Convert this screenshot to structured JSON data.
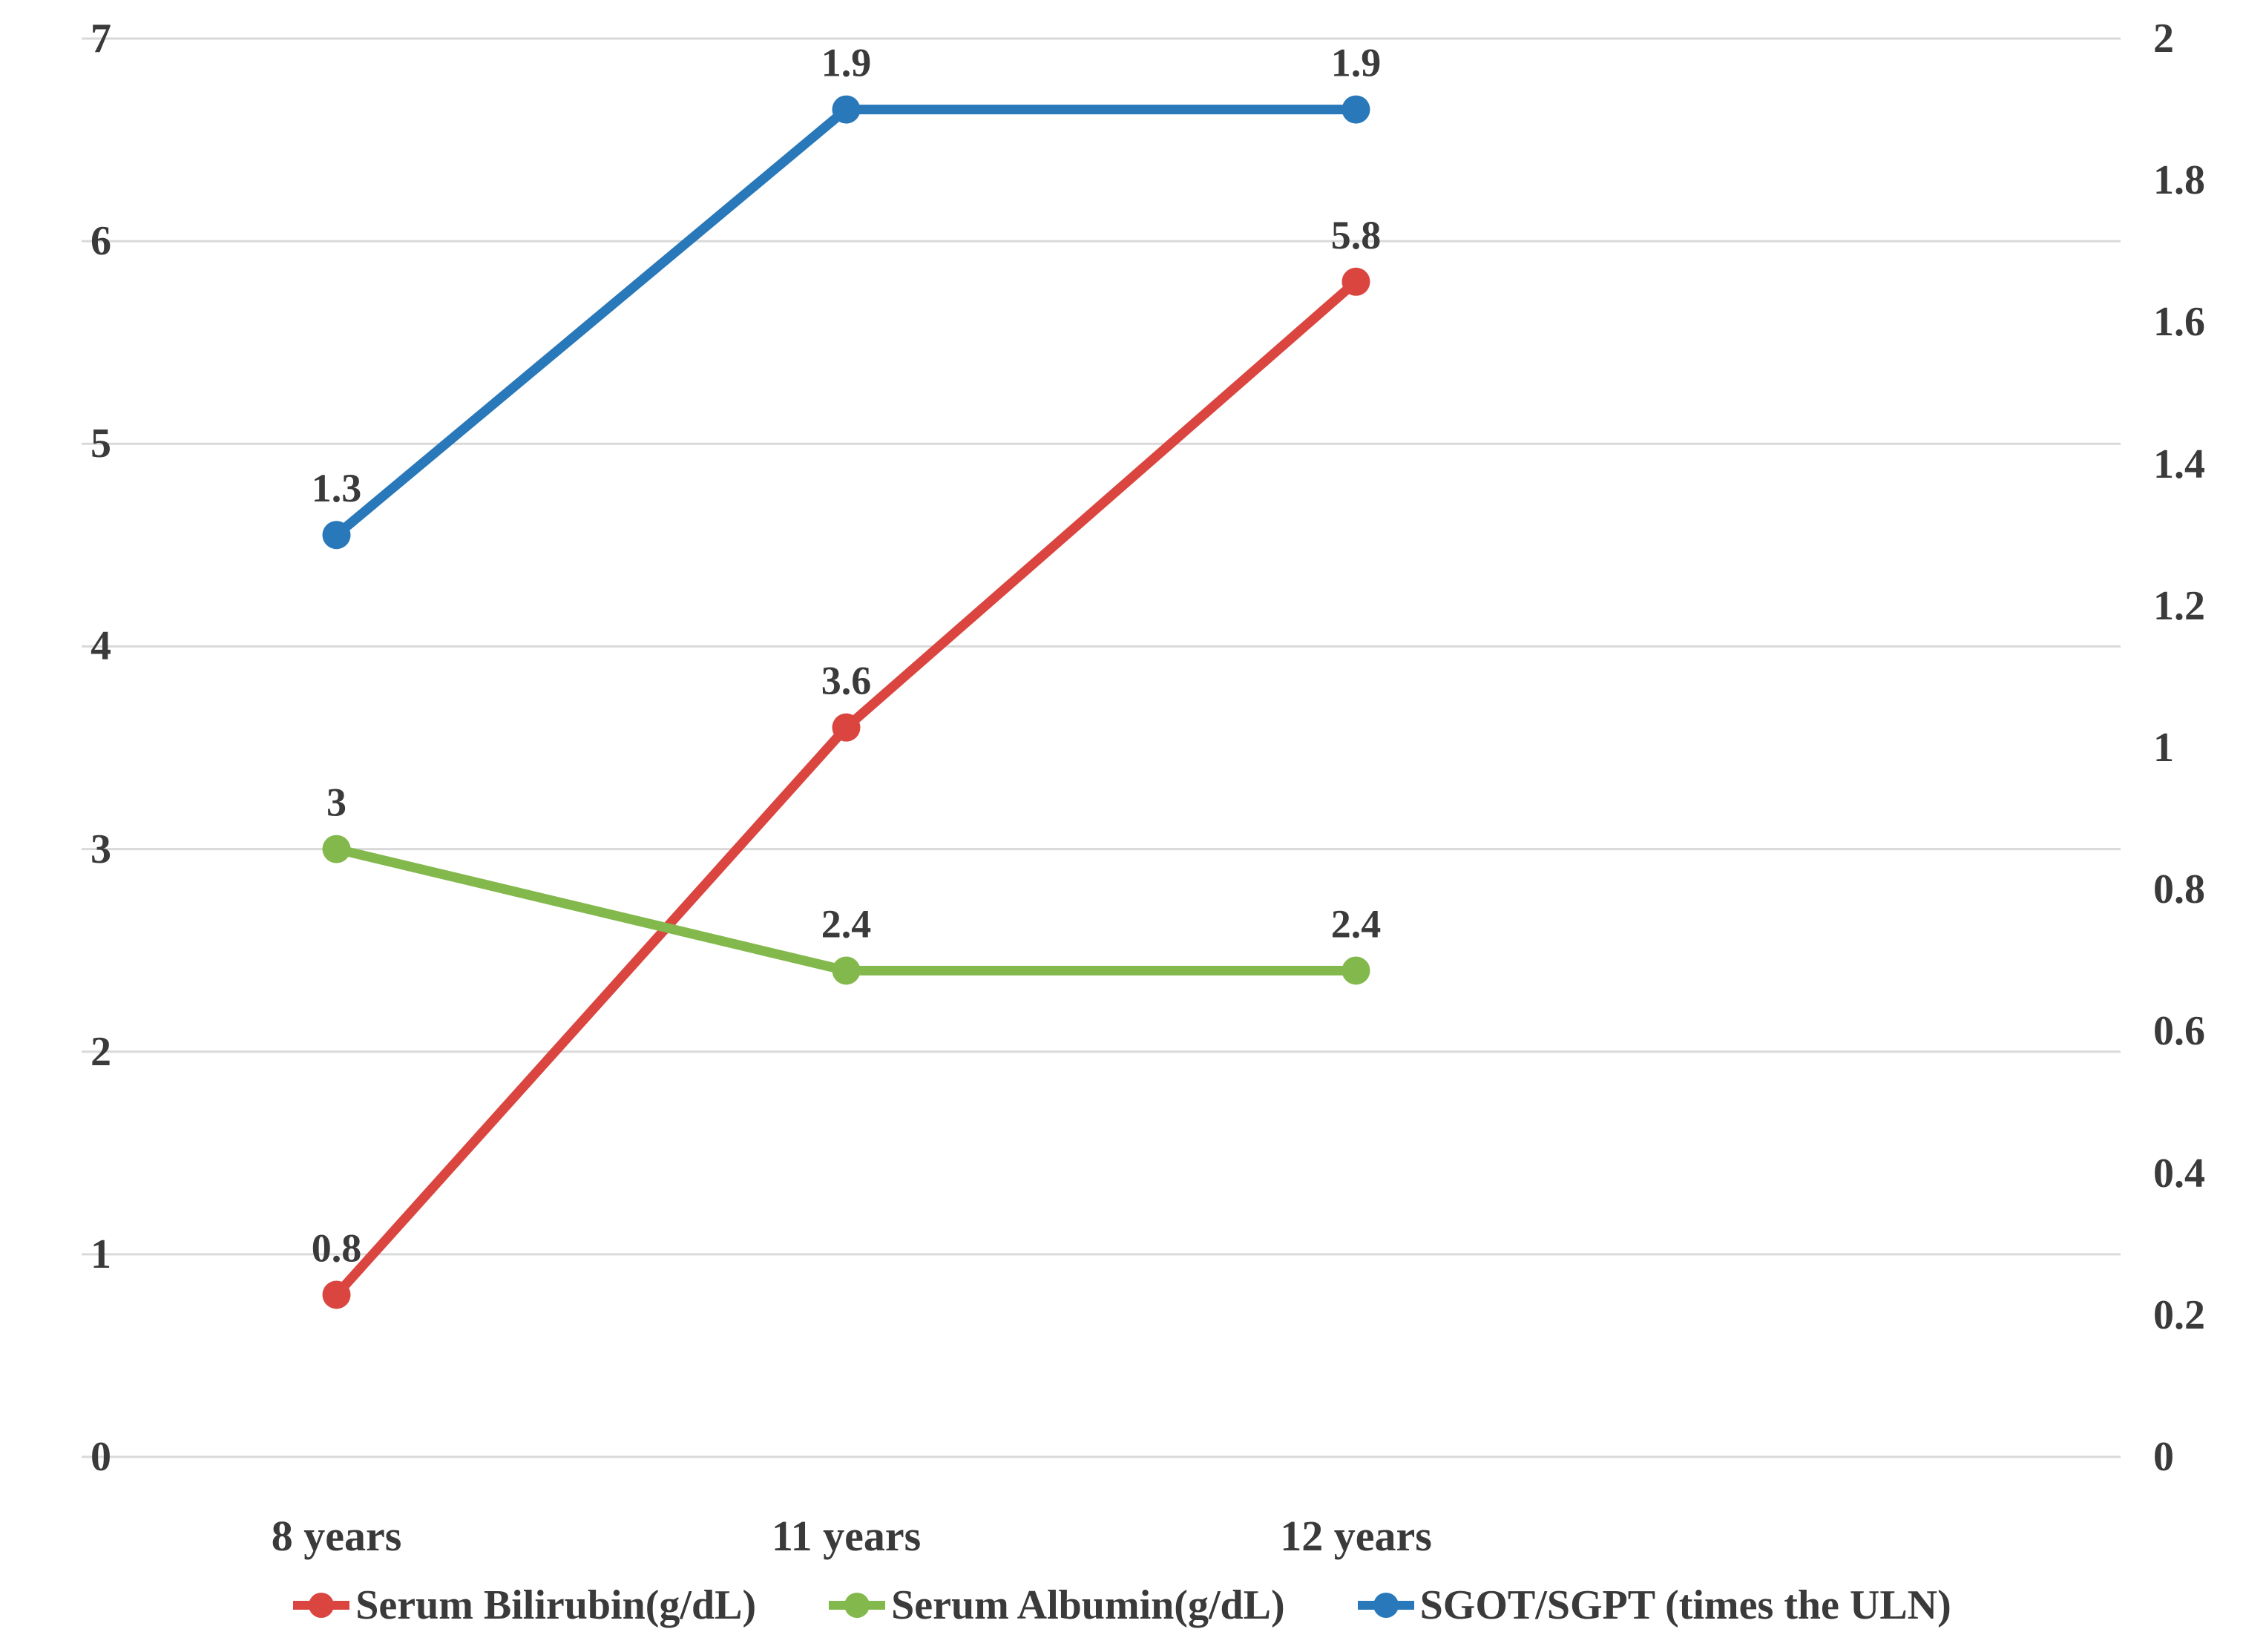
{
  "chart_data": {
    "type": "line",
    "categories": [
      "8 years",
      "11 years",
      "12 years"
    ],
    "series": [
      {
        "name": "Serum Bilirubin(g/dL)",
        "axis": "left",
        "color": "#DB4540",
        "values": [
          0.8,
          3.6,
          5.8
        ],
        "data_labels": [
          "0.8",
          "3.6",
          "5.8"
        ]
      },
      {
        "name": "Serum Albumin(g/dL)",
        "axis": "left",
        "color": "#83B94C",
        "values": [
          3,
          2.4,
          2.4
        ],
        "data_labels": [
          "3",
          "2.4",
          "2.4"
        ]
      },
      {
        "name": "SGOT/SGPT (times the ULN)",
        "axis": "right",
        "color": "#2878BA",
        "values": [
          1.3,
          1.9,
          1.9
        ],
        "data_labels": [
          "1.3",
          "1.9",
          "1.9"
        ]
      }
    ],
    "left_axis": {
      "min": 0,
      "max": 7,
      "step": 1,
      "ticks": [
        "0",
        "1",
        "2",
        "3",
        "4",
        "5",
        "6",
        "7"
      ]
    },
    "right_axis": {
      "min": 0,
      "max": 2,
      "step": 0.2,
      "ticks": [
        "0",
        "0.2",
        "0.4",
        "0.6",
        "0.8",
        "1",
        "1.2",
        "1.4",
        "1.6",
        "1.8",
        "2"
      ]
    },
    "title": "",
    "xlabel": "",
    "ylabel": "",
    "grid": true,
    "legend_position": "bottom",
    "colors": {
      "gridline": "#D9D9D9",
      "text": "#3A3A3A",
      "background": "#FFFFFF"
    }
  }
}
